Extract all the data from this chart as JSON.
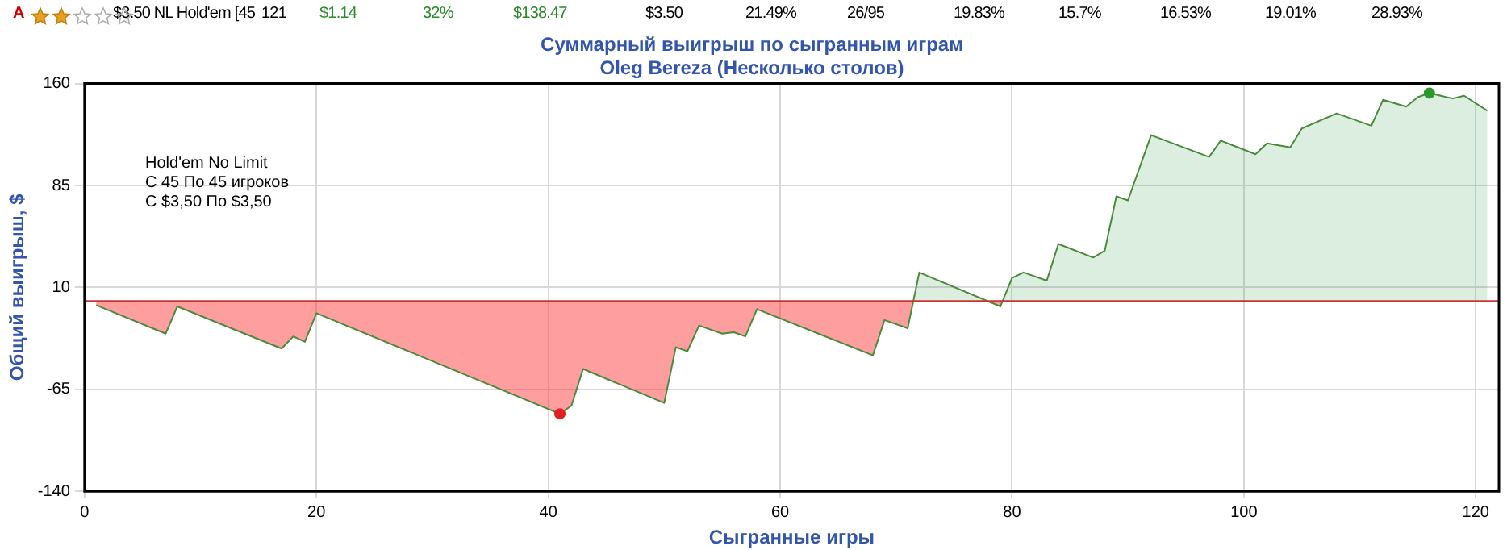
{
  "chart_data": {
    "type": "line",
    "title": "Суммарный выигрыш по сыгранным играм",
    "subtitle": "Oleg Bereza (Несколько столов)",
    "xlabel": "Сыгранные игры",
    "ylabel": "Общий выигрыш, $",
    "annotations": [
      "A",
      "$3.50 NL Hold'em [45",
      "121",
      "$1.14",
      "32%",
      "$138.47",
      "$3.50",
      "21.49%",
      "26/95",
      "19.83%",
      "15.7%",
      "16.53%",
      "19.01%",
      "28.93%",
      "Hold'em No Limit",
      "С 45 По 45 игроков",
      "С $3,50 По $3,50"
    ],
    "series": [
      {
        "marker": "none",
        "color": "#4a8a3a",
        "x": [
          1,
          7,
          8,
          17,
          18,
          19,
          20,
          41,
          42,
          43,
          50,
          51,
          52,
          53,
          55,
          56,
          57,
          58,
          68,
          69,
          71,
          72,
          79,
          80,
          81,
          83,
          84,
          87,
          88,
          89,
          90,
          92,
          97,
          98,
          101,
          102,
          104,
          105,
          108,
          111,
          112,
          114,
          115,
          116,
          118,
          119,
          121
        ],
        "values": [
          -3,
          -24,
          -4,
          -35,
          -26,
          -30,
          -9,
          -83,
          -77,
          -50,
          -75,
          -34,
          -37,
          -18,
          -24,
          -23,
          -26,
          -6,
          -40,
          -14,
          -20,
          21,
          -4,
          17,
          21,
          15,
          42,
          32,
          37,
          77,
          74,
          122,
          106,
          118,
          108,
          116,
          113,
          127,
          138,
          129,
          148,
          143,
          150,
          153,
          149,
          151,
          140
        ]
      },
      {
        "type": "scatter",
        "marker": "circle",
        "x": [
          41,
          116
        ],
        "values": [
          -83,
          153
        ],
        "colors": [
          "#e02020",
          "#2a9a2a"
        ]
      }
    ],
    "xlim": [
      0,
      122
    ],
    "xticks": [
      0,
      20,
      40,
      60,
      80,
      100,
      120
    ],
    "ylim": [
      -140,
      160
    ],
    "yticks": [
      -140,
      -65,
      10,
      85,
      160
    ],
    "grid": true,
    "legend": false,
    "ref_lines": [
      {
        "axis": "y",
        "value": 0,
        "color": "#cc3333"
      }
    ]
  }
}
